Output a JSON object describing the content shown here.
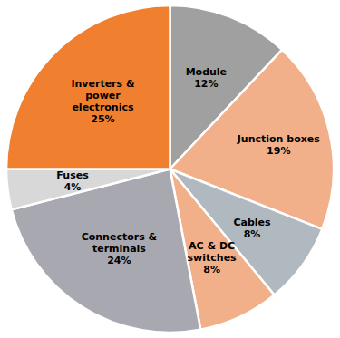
{
  "chart_data": {
    "type": "pie",
    "categories": [
      "Module",
      "Junction boxes",
      "Cables",
      "AC & DC\nswitches",
      "Connectors &\nterminals",
      "Fuses",
      "Inverters &\npower\nelectronics"
    ],
    "values": [
      12,
      19,
      8,
      8,
      24,
      4,
      25
    ],
    "value_labels": [
      "12%",
      "19%",
      "8%",
      "8%",
      "24%",
      "4%",
      "25%"
    ],
    "data_labels": true,
    "colors": [
      "#a0a0a0",
      "#f2b08a",
      "#b0b8c0",
      "#f2b08a",
      "#a8a8b0",
      "#d8d8d8",
      "#f08030"
    ]
  }
}
